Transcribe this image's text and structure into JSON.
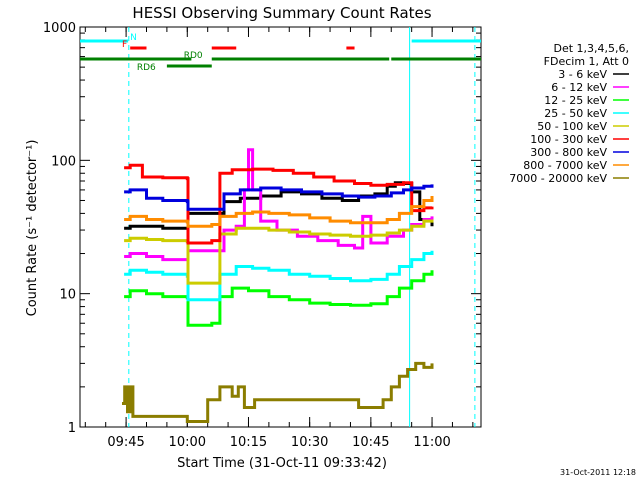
{
  "chart_data": {
    "type": "line",
    "title": "HESSI Observing Summary Count Rates",
    "xlabel": "Start Time (31-Oct-11 09:33:42)",
    "ylabel": "Count Rate (s⁻¹ detector⁻¹)",
    "y_scale": "log",
    "ylim": [
      1,
      1000
    ],
    "xlim": [
      "09:33:42",
      "11:12:00"
    ],
    "x_ticks": [
      "09:45",
      "10:00",
      "10:15",
      "10:30",
      "10:45",
      "11:00"
    ],
    "y_ticks": [
      "1",
      "10",
      "100",
      "1000"
    ],
    "footer": "31-Oct-2011 12:18",
    "legend": {
      "placement": "right",
      "header": [
        "Det 1,3,4,5,6,",
        "FDecim 1, Att 0"
      ],
      "entries": [
        {
          "label": "3 - 6 keV",
          "color": "#000000"
        },
        {
          "label": "6 - 12 keV",
          "color": "#ff00ff"
        },
        {
          "label": "12 - 25 keV",
          "color": "#00ff00"
        },
        {
          "label": "25 - 50 keV",
          "color": "#00ffff"
        },
        {
          "label": "50 - 100 keV",
          "color": "#cccc00"
        },
        {
          "label": "100 - 300 keV",
          "color": "#ff0000"
        },
        {
          "label": "300 - 800 keV",
          "color": "#0000dd"
        },
        {
          "label": "800 - 7000 keV",
          "color": "#ff8c00"
        },
        {
          "label": "7000 - 20000 keV",
          "color": "#8b7d00"
        }
      ]
    },
    "flags": [
      {
        "label": "N",
        "color": "#00ffff",
        "segments": [
          [
            "09:33:42",
            "09:45:30"
          ],
          [
            "10:55:00",
            "11:12:00"
          ]
        ]
      },
      {
        "label": "F",
        "color": "#ff0000",
        "segments": [
          [
            "09:46:00",
            "09:50:00"
          ],
          [
            "10:06:00",
            "10:12:00"
          ],
          [
            "10:39:00",
            "10:41:00"
          ]
        ]
      },
      {
        "label": "RD0",
        "color": "#008000",
        "segments": [
          [
            "09:33:42",
            "10:01:00"
          ],
          [
            "10:06:00",
            "10:49:30"
          ],
          [
            "10:50:00",
            "11:12:00"
          ]
        ]
      },
      {
        "label": "RD6",
        "color": "#008000",
        "segments": [
          [
            "09:55:00",
            "10:06:00"
          ]
        ]
      }
    ],
    "saa_lines": [
      {
        "time": "09:45:40",
        "style": "dashed"
      },
      {
        "time": "10:54:30",
        "style": "solid"
      },
      {
        "time": "11:10:30",
        "style": "dashed"
      }
    ],
    "series": [
      {
        "name": "3 - 6 keV",
        "color": "#000000",
        "x": [
          "09:44:30",
          "09:46:00",
          "09:50:00",
          "09:54:00",
          "10:00:00",
          "10:00:10",
          "10:06:00",
          "10:09:00",
          "10:13:00",
          "10:18:00",
          "10:23:00",
          "10:28:00",
          "10:33:00",
          "10:38:00",
          "10:42:00",
          "10:46:00",
          "10:49:00",
          "10:51:00",
          "10:53:00",
          "10:55:00",
          "10:57:00",
          "11:00:00"
        ],
        "y": [
          31,
          32,
          32,
          31,
          31,
          40,
          40,
          49,
          52,
          54,
          58,
          56,
          52,
          50,
          54,
          56,
          64,
          68,
          67,
          58,
          36,
          32
        ]
      },
      {
        "name": "6 - 12 keV",
        "color": "#ff00ff",
        "x": [
          "09:44:30",
          "09:46:00",
          "09:50:00",
          "09:54:00",
          "10:00:00",
          "10:00:10",
          "10:06:00",
          "10:09:00",
          "10:12:00",
          "10:14:00",
          "10:15:00",
          "10:16:00",
          "10:18:00",
          "10:22:00",
          "10:27:00",
          "10:32:00",
          "10:37:00",
          "10:41:00",
          "10:43:00",
          "10:45:00",
          "10:49:00",
          "10:53:00",
          "10:55:00",
          "10:58:00",
          "11:00:00"
        ],
        "y": [
          19,
          20,
          19,
          18,
          18,
          21,
          21,
          30,
          32,
          60,
          120,
          60,
          35,
          30,
          27,
          25,
          23,
          22,
          38,
          24,
          27,
          30,
          33,
          36,
          38
        ]
      },
      {
        "name": "12 - 25 keV",
        "color": "#00ff00",
        "x": [
          "09:44:30",
          "09:46:00",
          "09:50:00",
          "09:54:00",
          "10:00:00",
          "10:00:10",
          "10:06:00",
          "10:08:00",
          "10:11:00",
          "10:15:00",
          "10:20:00",
          "10:25:00",
          "10:30:00",
          "10:35:00",
          "10:40:00",
          "10:45:00",
          "10:49:00",
          "10:52:00",
          "10:55:00",
          "10:58:00",
          "11:00:00"
        ],
        "y": [
          9.5,
          10.5,
          10,
          9.5,
          9.3,
          5.8,
          6,
          9.5,
          11,
          10.5,
          9.5,
          9,
          8.5,
          8.3,
          8.2,
          8.4,
          9.5,
          11,
          12.5,
          14,
          15
        ]
      },
      {
        "name": "25 - 50 keV",
        "color": "#00ffff",
        "x": [
          "09:44:30",
          "09:46:00",
          "09:50:00",
          "09:54:00",
          "10:00:00",
          "10:00:10",
          "10:06:00",
          "10:08:00",
          "10:12:00",
          "10:16:00",
          "10:20:00",
          "10:25:00",
          "10:30:00",
          "10:35:00",
          "10:40:00",
          "10:45:00",
          "10:49:00",
          "10:52:00",
          "10:55:00",
          "10:58:00",
          "11:00:00"
        ],
        "y": [
          14,
          15,
          14.5,
          14,
          13.5,
          9,
          9,
          14,
          16,
          15.5,
          15,
          14,
          13.5,
          13,
          12.5,
          12.8,
          14,
          16,
          18,
          20,
          21
        ]
      },
      {
        "name": "50 - 100 keV",
        "color": "#cccc00",
        "x": [
          "09:44:30",
          "09:46:00",
          "09:50:00",
          "09:54:00",
          "10:00:00",
          "10:00:10",
          "10:06:00",
          "10:08:00",
          "10:12:00",
          "10:16:00",
          "10:20:00",
          "10:25:00",
          "10:30:00",
          "10:35:00",
          "10:40:00",
          "10:45:00",
          "10:49:00",
          "10:52:00",
          "10:55:00",
          "10:58:00",
          "11:00:00"
        ],
        "y": [
          25,
          26,
          25.5,
          25,
          24.5,
          12,
          12,
          28,
          31,
          31,
          30,
          29,
          28,
          27.5,
          27,
          27.5,
          28.5,
          30,
          32,
          35,
          36
        ]
      },
      {
        "name": "100 - 300 keV",
        "color": "#ff0000",
        "x": [
          "09:44:30",
          "09:46:00",
          "09:49:00",
          "09:54:00",
          "10:00:00",
          "10:00:10",
          "10:06:00",
          "10:08:00",
          "10:11:00",
          "10:16:00",
          "10:21:00",
          "10:26:00",
          "10:31:00",
          "10:36:00",
          "10:41:00",
          "10:45:00",
          "10:49:00",
          "10:53:00",
          "10:55:00",
          "10:58:00",
          "11:00:00"
        ],
        "y": [
          88,
          92,
          75,
          74,
          73,
          24,
          25,
          80,
          85,
          86,
          84,
          80,
          75,
          70,
          67,
          65,
          66,
          68,
          42,
          44,
          45
        ]
      },
      {
        "name": "300 - 800 keV",
        "color": "#0000dd",
        "x": [
          "09:44:30",
          "09:46:00",
          "09:50:00",
          "09:54:00",
          "10:00:00",
          "10:00:10",
          "10:06:00",
          "10:09:00",
          "10:13:00",
          "10:18:00",
          "10:23:00",
          "10:28:00",
          "10:33:00",
          "10:38:00",
          "10:42:00",
          "10:46:00",
          "10:50:00",
          "10:53:00",
          "10:55:00",
          "10:58:00",
          "11:00:00"
        ],
        "y": [
          58,
          60,
          52,
          50,
          49,
          43,
          43,
          56,
          60,
          62,
          60,
          58,
          56,
          54,
          53,
          54,
          57,
          60,
          62,
          64,
          66
        ]
      },
      {
        "name": "800 - 7000 keV",
        "color": "#ff8c00",
        "x": [
          "09:44:30",
          "09:46:00",
          "09:50:00",
          "09:54:00",
          "10:00:00",
          "10:00:10",
          "10:06:00",
          "10:08:00",
          "10:12:00",
          "10:16:00",
          "10:20:00",
          "10:25:00",
          "10:30:00",
          "10:35:00",
          "10:40:00",
          "10:45:00",
          "10:49:00",
          "10:52:00",
          "10:55:00",
          "10:58:00",
          "11:00:00"
        ],
        "y": [
          36,
          38,
          36,
          35,
          34.5,
          32,
          33,
          38,
          40,
          41,
          40,
          39,
          37,
          35,
          34,
          34,
          36,
          40,
          45,
          50,
          54
        ]
      },
      {
        "name": "7000 - 20000 keV",
        "color": "#8b7d00",
        "x": [
          "09:44:00",
          "09:44:40",
          "09:45:20",
          "09:46:00",
          "09:46:40",
          "10:00:00",
          "10:05:00",
          "10:08:00",
          "10:11:00",
          "10:12:30",
          "10:14:00",
          "10:16:30",
          "10:42:00",
          "10:48:00",
          "10:50:00",
          "10:52:00",
          "10:54:00",
          "10:56:00",
          "10:58:00",
          "11:00:00"
        ],
        "y": [
          1.5,
          2,
          1.3,
          2,
          1.2,
          1.1,
          1.6,
          2,
          1.7,
          2,
          1.4,
          1.6,
          1.4,
          1.6,
          2,
          2.4,
          2.7,
          3,
          2.8,
          3
        ]
      }
    ]
  }
}
